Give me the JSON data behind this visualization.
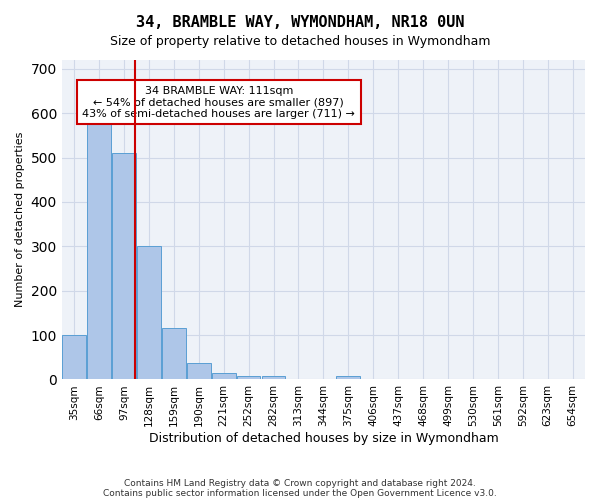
{
  "title": "34, BRAMBLE WAY, WYMONDHAM, NR18 0UN",
  "subtitle": "Size of property relative to detached houses in Wymondham",
  "xlabel": "Distribution of detached houses by size in Wymondham",
  "ylabel": "Number of detached properties",
  "footnote1": "Contains HM Land Registry data © Crown copyright and database right 2024.",
  "footnote2": "Contains public sector information licensed under the Open Government Licence v3.0.",
  "bin_labels": [
    "35sqm",
    "66sqm",
    "97sqm",
    "128sqm",
    "159sqm",
    "190sqm",
    "221sqm",
    "252sqm",
    "282sqm",
    "313sqm",
    "344sqm",
    "375sqm",
    "406sqm",
    "437sqm",
    "468sqm",
    "499sqm",
    "530sqm",
    "561sqm",
    "592sqm",
    "623sqm",
    "654sqm"
  ],
  "bar_values": [
    100,
    575,
    510,
    300,
    115,
    37,
    15,
    8,
    8,
    0,
    0,
    8,
    0,
    0,
    0,
    0,
    0,
    0,
    0,
    0,
    0
  ],
  "bar_color": "#aec6e8",
  "bar_edge_color": "#5a9fd4",
  "grid_color": "#d0d8e8",
  "background_color": "#eef2f8",
  "red_line_x": 2.45,
  "annotation_text": "34 BRAMBLE WAY: 111sqm\n← 54% of detached houses are smaller (897)\n43% of semi-detached houses are larger (711) →",
  "annotation_box_color": "#ffffff",
  "annotation_border_color": "#cc0000",
  "ylim": [
    0,
    720
  ],
  "yticks": [
    0,
    100,
    200,
    300,
    400,
    500,
    600,
    700
  ]
}
